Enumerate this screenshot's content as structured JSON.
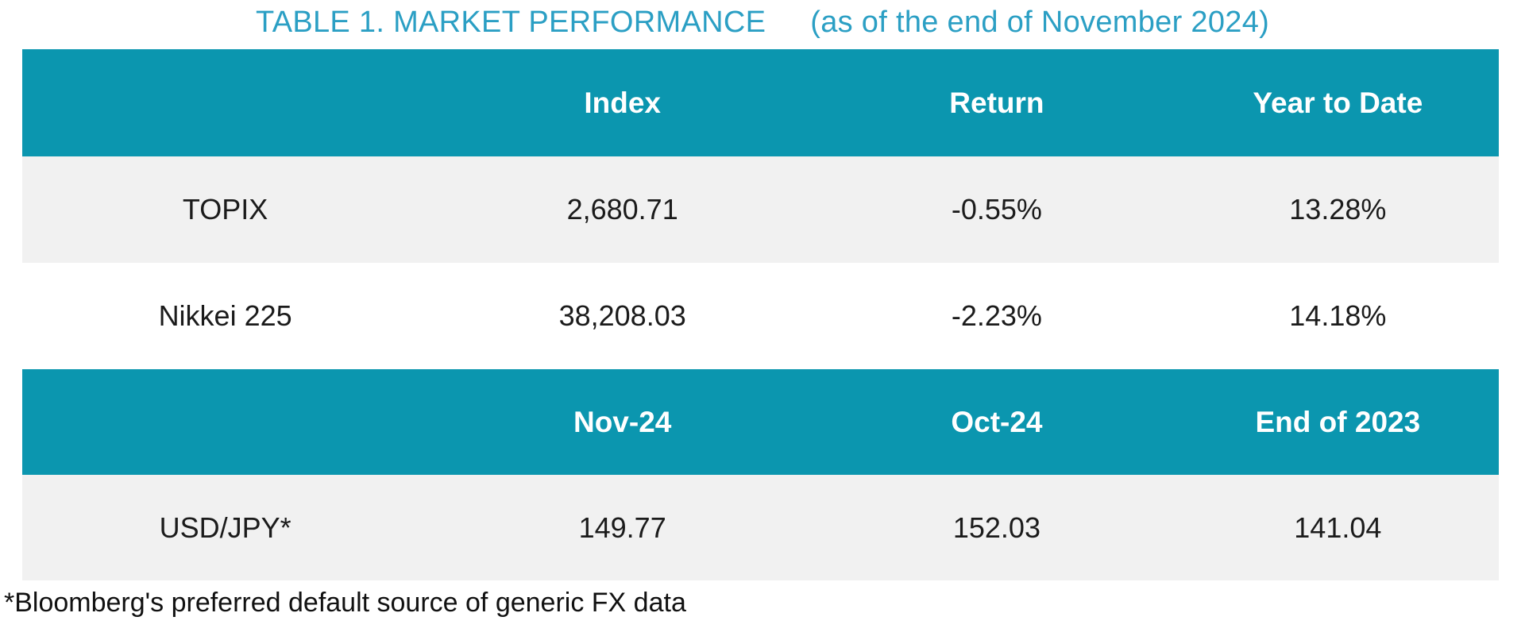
{
  "title": {
    "main": "TABLE 1. MARKET PERFORMANCE",
    "sub": "(as of the end of November 2024)"
  },
  "colors": {
    "header_teal": "#0b96af",
    "title_teal": "#2b9fc4",
    "alt_row_gray": "#f1f1f1",
    "body_text": "#1b1b1b",
    "header_text": "#ffffff"
  },
  "table": {
    "header1": {
      "c0": "",
      "c1": "Index",
      "c2": "Return",
      "c3": "Year to Date"
    },
    "rows1": [
      {
        "c0": "TOPIX",
        "c1": "2,680.71",
        "c2": "-0.55%",
        "c3": "13.28%"
      },
      {
        "c0": "Nikkei 225",
        "c1": "38,208.03",
        "c2": "-2.23%",
        "c3": "14.18%"
      }
    ],
    "header2": {
      "c0": "",
      "c1": "Nov-24",
      "c2": "Oct-24",
      "c3": "End of 2023"
    },
    "rows2": [
      {
        "c0": "USD/JPY*",
        "c1": "149.77",
        "c2": "152.03",
        "c3": "141.04"
      }
    ]
  },
  "footnote": "*Bloomberg's preferred default source of generic FX data"
}
